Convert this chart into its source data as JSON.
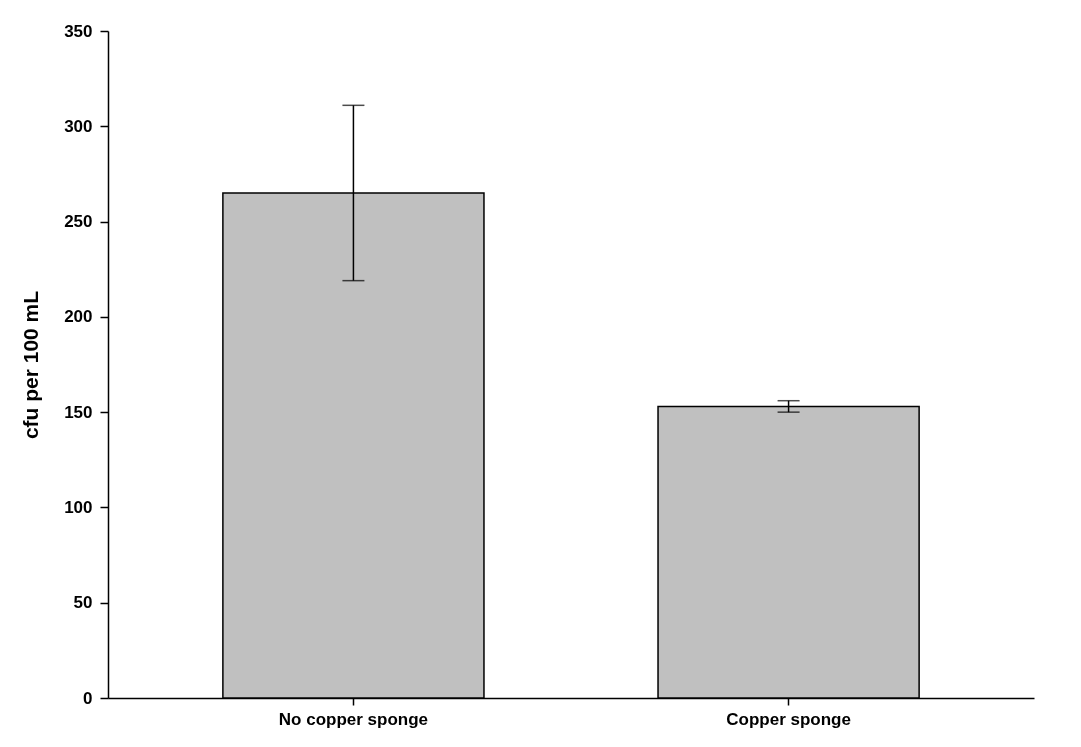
{
  "chart_data": {
    "type": "bar",
    "ylabel": "cfu per 100 mL",
    "categories": [
      "No copper sponge",
      "Copper sponge"
    ],
    "values": [
      265,
      153
    ],
    "errors": [
      46,
      3
    ],
    "color": "#c0c0c0",
    "ylim": [
      0,
      350
    ],
    "yticks": [
      0,
      50,
      100,
      150,
      200,
      250,
      300,
      350
    ]
  }
}
